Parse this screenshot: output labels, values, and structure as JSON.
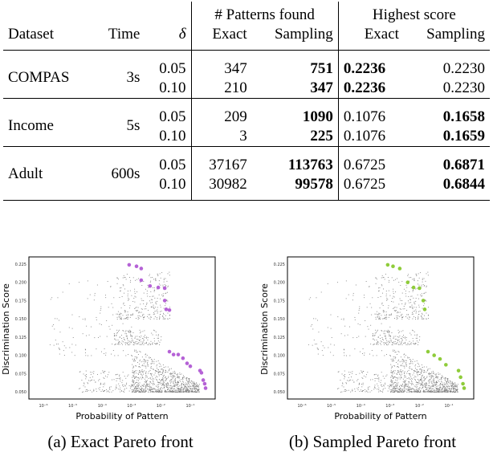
{
  "table": {
    "header_groups": [
      "# Patterns found",
      "Highest score"
    ],
    "columns": [
      "Dataset",
      "Time",
      "δ",
      "Exact",
      "Sampling",
      "Exact",
      "Sampling"
    ],
    "rows": [
      {
        "dataset": "COMPAS",
        "time": "3s",
        "entries": [
          {
            "delta": "0.05",
            "pe": "347",
            "ps": "751",
            "he": "0.2236",
            "hs": "0.2230"
          },
          {
            "delta": "0.10",
            "pe": "210",
            "ps": "347",
            "he": "0.2236",
            "hs": "0.2230"
          }
        ]
      },
      {
        "dataset": "Income",
        "time": "5s",
        "entries": [
          {
            "delta": "0.05",
            "pe": "209",
            "ps": "1090",
            "he": "0.1076",
            "hs": "0.1658"
          },
          {
            "delta": "0.10",
            "pe": "3",
            "ps": "225",
            "he": "0.1076",
            "hs": "0.1659"
          }
        ]
      },
      {
        "dataset": "Adult",
        "time": "600s",
        "entries": [
          {
            "delta": "0.05",
            "pe": "37167",
            "ps": "113763",
            "he": "0.6725",
            "hs": "0.6871"
          },
          {
            "delta": "0.10",
            "pe": "30982",
            "ps": "99578",
            "he": "0.6725",
            "hs": "0.6844"
          }
        ]
      }
    ]
  },
  "chart_data": [
    {
      "type": "scatter",
      "caption": "(a) Exact Pareto front",
      "xlabel": "Probability of Pattern",
      "ylabel": "Discrimination Score",
      "xscale": "log",
      "xticks": [
        "10⁻⁶",
        "10⁻⁵",
        "10⁻⁴",
        "10⁻³",
        "10⁻²",
        "10⁻¹"
      ],
      "yticks": [
        "0.050",
        "0.075",
        "0.100",
        "0.125",
        "0.150",
        "0.175",
        "0.200",
        "0.225"
      ],
      "ylim": [
        0.045,
        0.23
      ],
      "front_color": "#b562d6",
      "front_log10x": [
        -3.08,
        -2.83,
        -2.67,
        -2.67,
        -2.37,
        -2.09,
        -1.87,
        -1.87,
        -1.82,
        -1.71,
        -1.71,
        -1.57,
        -1.41,
        -1.25,
        -1.11,
        -1.0,
        -0.67,
        -0.62,
        -0.56,
        -0.51,
        -0.48
      ],
      "front_y": [
        0.224,
        0.222,
        0.219,
        0.203,
        0.195,
        0.193,
        0.192,
        0.175,
        0.163,
        0.162,
        0.105,
        0.101,
        0.101,
        0.096,
        0.089,
        0.085,
        0.079,
        0.076,
        0.066,
        0.061,
        0.055
      ]
    },
    {
      "type": "scatter",
      "caption": "(b) Sampled Pareto front",
      "xlabel": "Probability of Pattern",
      "ylabel": "Discrimination Score",
      "xscale": "log",
      "xticks": [
        "10⁻⁶",
        "10⁻⁵",
        "10⁻⁴",
        "10⁻³",
        "10⁻²",
        "10⁻¹"
      ],
      "yticks": [
        "0.050",
        "0.075",
        "0.100",
        "0.125",
        "0.150",
        "0.175",
        "0.200",
        "0.225"
      ],
      "ylim": [
        0.045,
        0.23
      ],
      "front_color": "#8fcc3a",
      "front_log10x": [
        -3.08,
        -2.9,
        -2.67,
        -2.4,
        -2.2,
        -2.0,
        -1.87,
        -1.82,
        -1.71,
        -1.5,
        -1.3,
        -1.1,
        -0.67,
        -0.6,
        -0.52,
        -0.48
      ],
      "front_y": [
        0.224,
        0.222,
        0.219,
        0.2,
        0.193,
        0.192,
        0.175,
        0.163,
        0.105,
        0.1,
        0.095,
        0.087,
        0.079,
        0.07,
        0.061,
        0.055
      ]
    }
  ]
}
